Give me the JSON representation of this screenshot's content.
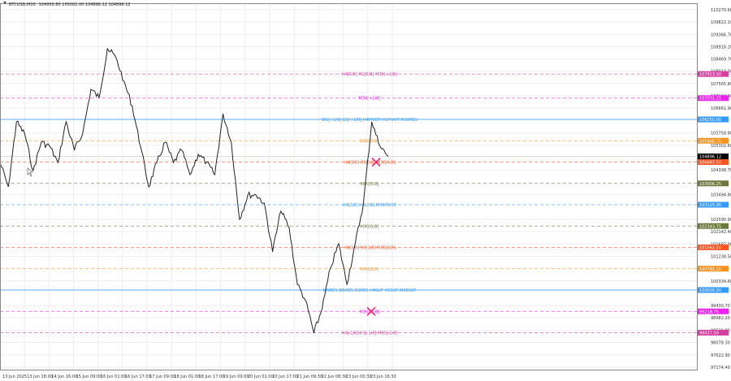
{
  "header": {
    "symbol": "BTCUSD,M30",
    "ohlc": "104950.80 105002.00 104896.12 104896.12"
  },
  "chart_data": {
    "type": "line",
    "title": "BTCUSD,M30",
    "ylim": [
      97174.4,
      110270.6
    ],
    "grid": true,
    "y_ticks": [
      "110270.60",
      "109822.10",
      "109366.70",
      "108918.20",
      "108469.70",
      "108014.30",
      "107565.80",
      "107110.40",
      "106661.90",
      "105758.80",
      "105302.60",
      "104398.70",
      "103494.80",
      "102590.90",
      "102142.40",
      "101687.00",
      "101238.50",
      "100334.60",
      "99430.70",
      "98982.20",
      "98526.80",
      "98078.30",
      "97622.90",
      "97174.40"
    ],
    "x_ticks": [
      "13 Jun 2025",
      "13 Jun 18:00",
      "14 Jun 16:00",
      "15 Jun 09:00",
      "16 Jun 01:00",
      "16 Jun 17:00",
      "17 Jun 09:00",
      "18 Jun 01:00",
      "18 Jun 17:00",
      "19 Jun 09:00",
      "20 Jun 01:00",
      "20 Jun 17:00",
      "21 Jun 09:30",
      "22 Jun 08:30",
      "23 Jun 00:30",
      "23 Jun 16:30"
    ],
    "close": [
      104673,
      103780,
      106161,
      105714,
      104375,
      105417,
      105268,
      104673,
      106161,
      105119,
      105714,
      107351,
      107054,
      108839,
      108542,
      107649,
      106756,
      105268,
      103780,
      104673,
      105417,
      104673,
      105119,
      104226,
      104970,
      104673,
      104226,
      106458,
      105417,
      102590,
      103482,
      103482,
      103185,
      101399,
      102887,
      102292,
      100209,
      99613,
      98423,
      99316,
      100804,
      101697,
      100209,
      101697,
      103185,
      106161,
      105268,
      104896
    ],
    "current_price": {
      "value": "104896.12",
      "color": "#000000"
    },
    "levels": [
      {
        "price": 107913.5,
        "value": "107913.50",
        "label": "H4[5/8] H1[5/8] M30[+2/8]",
        "color": "#d63fa0"
      },
      {
        "price": 107031.25,
        "value": "107031.25",
        "label": "M30[+1/8]",
        "color": "#ee22ee"
      },
      {
        "price": 106250.0,
        "value": "106250.00",
        "label": "W1[+1/8] D1[+1/8] H4PIVOT H1PIVOT M30RES",
        "color": "#3399ff"
      },
      {
        "price": 105468.75,
        "value": "105468.75",
        "label": "M30[7/8]",
        "color": "#f7931e"
      },
      {
        "price": 104687.5,
        "value": "104687.50",
        "label": "H4[5/8] H1[5/8] M30[6/8]",
        "color": "#ff5522"
      },
      {
        "price": 103906.25,
        "value": "103906.25",
        "label": "M30[5/8]",
        "color": "#6b7a3a"
      },
      {
        "price": 103125.0,
        "value": "103125.00",
        "label": "H4[2/8] H1[2/8] M30PIVOT",
        "color": "#3399ff"
      },
      {
        "price": 102343.75,
        "value": "102343.75",
        "label": "M30[3/8]",
        "color": "#6b7a3a"
      },
      {
        "price": 101562.5,
        "value": "101562.50",
        "label": "H4[1/8] H1[1/8] M30[2/8]",
        "color": "#ff5522"
      },
      {
        "price": 100781.25,
        "value": "100781.25",
        "label": "M30[1/8]",
        "color": "#f7931e"
      },
      {
        "price": 100000.0,
        "value": "100000.00",
        "label": "MNRES W1RES D1RES H4SUP H1SUP M30SUP",
        "color": "#3399ff"
      },
      {
        "price": 99218.75,
        "value": "99218.75",
        "label": "M30[-1/8]",
        "color": "#ee22ee"
      },
      {
        "price": 98437.5,
        "value": "98437.50",
        "label": "H4[-1/8] H1[-1/8] M30[-2/8]",
        "color": "#d63fa0"
      }
    ],
    "markers": [
      {
        "type": "cross",
        "price": 104687.5,
        "color": "#ff2266"
      },
      {
        "type": "cross",
        "price": 99218.75,
        "color": "#ff2266"
      }
    ]
  }
}
